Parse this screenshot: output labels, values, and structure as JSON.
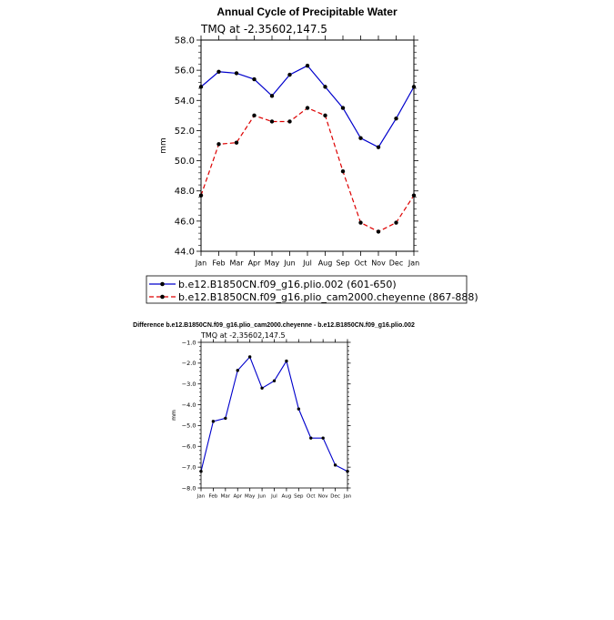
{
  "chart_data": [
    {
      "type": "line",
      "title": "Annual Cycle of Precipitable Water",
      "subtitle": "TMQ at -2.35602,147.5",
      "ylabel": "mm",
      "xlabel": "",
      "categories": [
        "Jan",
        "Feb",
        "Mar",
        "Apr",
        "May",
        "Jun",
        "Jul",
        "Aug",
        "Sep",
        "Oct",
        "Nov",
        "Dec",
        "Jan"
      ],
      "ylim": [
        44.0,
        58.0
      ],
      "yticks": [
        "44.0",
        "46.0",
        "48.0",
        "50.0",
        "52.0",
        "54.0",
        "56.0",
        "58.0"
      ],
      "series": [
        {
          "name": "b.e12.B1850CN.f09_g16.plio.002 (601-650)",
          "color": "#0000cc",
          "dash": "solid",
          "values": [
            54.9,
            55.9,
            55.8,
            55.4,
            54.3,
            55.7,
            56.3,
            54.9,
            53.5,
            51.5,
            50.9,
            52.8,
            54.9
          ]
        },
        {
          "name": "b.e12.B1850CN.f09_g16.plio_cam2000.cheyenne (867-888)",
          "color": "#dd0000",
          "dash": "dashed",
          "values": [
            47.7,
            51.1,
            51.2,
            53.0,
            52.6,
            52.6,
            53.5,
            53.0,
            49.3,
            45.9,
            45.3,
            45.9,
            47.7
          ]
        }
      ],
      "legend": "bottom"
    },
    {
      "type": "line",
      "title": "Difference b.e12.B1850CN.f09_g16.plio_cam2000.cheyenne - b.e12.B1850CN.f09_g16.plio.002",
      "subtitle": "TMQ at -2.35602,147.5",
      "ylabel": "mm",
      "xlabel": "",
      "categories": [
        "Jan",
        "Feb",
        "Mar",
        "Apr",
        "May",
        "Jun",
        "Jul",
        "Aug",
        "Sep",
        "Oct",
        "Nov",
        "Dec",
        "Jan"
      ],
      "ylim": [
        -8.0,
        -1.0
      ],
      "yticks": [
        "-8.0",
        "-7.0",
        "-6.0",
        "-5.0",
        "-4.0",
        "-3.0",
        "-2.0",
        "-1.0"
      ],
      "series": [
        {
          "color": "#0000cc",
          "dash": "solid",
          "values": [
            -7.2,
            -4.8,
            -4.65,
            -2.35,
            -1.7,
            -3.2,
            -2.85,
            -1.9,
            -4.2,
            -5.6,
            -5.6,
            -6.9,
            -7.2
          ]
        }
      ]
    }
  ]
}
